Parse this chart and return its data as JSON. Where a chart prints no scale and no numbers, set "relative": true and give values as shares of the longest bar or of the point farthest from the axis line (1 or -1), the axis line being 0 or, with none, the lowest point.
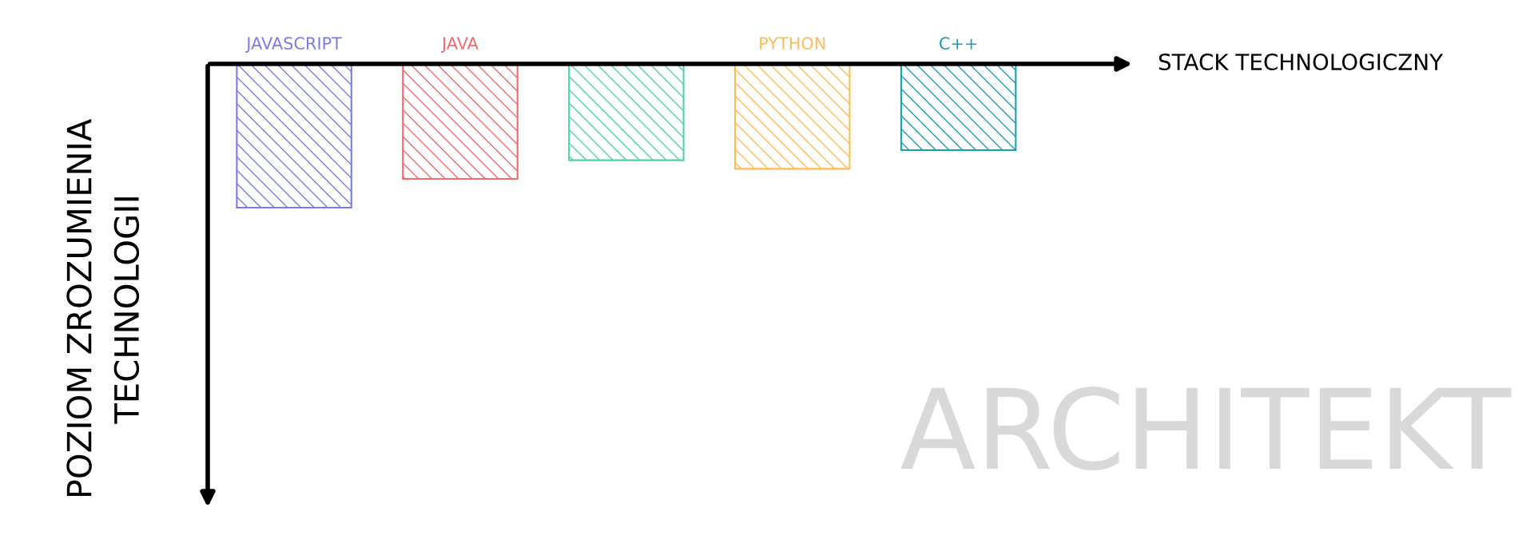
{
  "chart_data": {
    "type": "bar",
    "relative": true,
    "categories": [
      "JAVASCRIPT",
      "JAVA",
      null,
      "PYTHON",
      "C++"
    ],
    "values": [
      -1,
      -0.8,
      -0.67,
      -0.73,
      -0.6
    ],
    "colors": [
      "#7b7be8",
      "#f26b6b",
      "#4fd6a0",
      "#ffbb55",
      "#1aa0b4"
    ],
    "ylabel": "POZIOM ZROZUMIENIA\nTECHNOLOGII",
    "annotations": [
      "STACK TECHNOLOGICZNY",
      "ARCHITEKT"
    ],
    "grid": false,
    "legend": false
  }
}
